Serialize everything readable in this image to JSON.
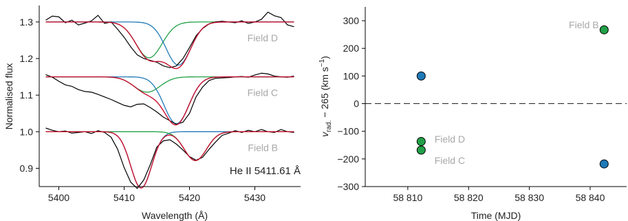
{
  "chart_data": [
    {
      "type": "line",
      "xlabel": "Wavelength (Å)",
      "ylabel": "Normalised flux",
      "xlim": [
        5397,
        5437
      ],
      "ylim": [
        0.85,
        1.345
      ],
      "xticks": [
        5400,
        5410,
        5420,
        5430
      ],
      "yticks": [
        0.9,
        1.0,
        1.1,
        1.2,
        1.3
      ],
      "ytick_labels": [
        "0.9",
        "1.0",
        "1.1",
        "1.2",
        "1.3"
      ],
      "annotation": "He II 5411.61 Å",
      "colors": {
        "data": "#000000",
        "fit": "#c8102e",
        "blue": "#1f7ab8",
        "green": "#22a047"
      },
      "panels": [
        {
          "label": "Field D",
          "continuum": 1.3,
          "components": [
            {
              "color": "green",
              "center": 5413.8,
              "depth": 0.098,
              "sigma": 2.0
            },
            {
              "color": "blue",
              "center": 5418.3,
              "depth": 0.118,
              "sigma": 1.9
            }
          ],
          "observed": {
            "x": [
              5398,
              5399,
              5400,
              5401,
              5402,
              5403,
              5404,
              5405,
              5406,
              5407,
              5408,
              5409,
              5410,
              5411,
              5412,
              5413,
              5414,
              5415,
              5416,
              5417,
              5418,
              5419,
              5420,
              5421,
              5422,
              5423,
              5424,
              5425,
              5426,
              5427,
              5428,
              5429,
              5430,
              5431,
              5432,
              5433,
              5434,
              5435,
              5436
            ],
            "y": [
              1.305,
              1.316,
              1.314,
              1.298,
              1.305,
              1.292,
              1.297,
              1.303,
              1.318,
              1.296,
              1.3,
              1.28,
              1.258,
              1.232,
              1.21,
              1.2,
              1.195,
              1.19,
              1.18,
              1.175,
              1.18,
              1.2,
              1.23,
              1.262,
              1.282,
              1.295,
              1.3,
              1.302,
              1.3,
              1.298,
              1.303,
              1.296,
              1.3,
              1.307,
              1.327,
              1.317,
              1.312,
              1.292,
              1.287
            ]
          }
        },
        {
          "label": "Field C",
          "continuum": 1.15,
          "components": [
            {
              "color": "green",
              "center": 5413.5,
              "depth": 0.042,
              "sigma": 2.0
            },
            {
              "color": "blue",
              "center": 5418.0,
              "depth": 0.128,
              "sigma": 1.9
            }
          ],
          "observed": {
            "x": [
              5398,
              5399,
              5400,
              5401,
              5402,
              5403,
              5404,
              5405,
              5406,
              5407,
              5408,
              5409,
              5410,
              5411,
              5412,
              5413,
              5414,
              5415,
              5416,
              5417,
              5418,
              5419,
              5420,
              5421,
              5422,
              5423,
              5424,
              5425,
              5426,
              5427,
              5428,
              5429,
              5430,
              5431,
              5432,
              5433,
              5434,
              5435,
              5436
            ],
            "y": [
              1.156,
              1.149,
              1.138,
              1.128,
              1.124,
              1.115,
              1.11,
              1.108,
              1.102,
              1.095,
              1.088,
              1.08,
              1.072,
              1.068,
              1.075,
              1.076,
              1.066,
              1.054,
              1.04,
              1.03,
              1.02,
              1.026,
              1.05,
              1.095,
              1.122,
              1.14,
              1.146,
              1.147,
              1.148,
              1.15,
              1.151,
              1.149,
              1.155,
              1.16,
              1.158,
              1.152,
              1.15,
              1.149,
              1.152
            ]
          }
        },
        {
          "label": "Field B",
          "continuum": 1.0,
          "components": [
            {
              "color": "blue",
              "center": 5412.6,
              "depth": 0.154,
              "sigma": 1.6
            },
            {
              "color": "green",
              "center": 5420.9,
              "depth": 0.079,
              "sigma": 1.7
            }
          ],
          "observed": {
            "x": [
              5398,
              5399,
              5400,
              5401,
              5402,
              5403,
              5404,
              5405,
              5406,
              5407,
              5408,
              5409,
              5410,
              5411,
              5412,
              5413,
              5414,
              5415,
              5416,
              5417,
              5418,
              5419,
              5420,
              5421,
              5422,
              5423,
              5424,
              5425,
              5426,
              5427,
              5428,
              5429,
              5430,
              5431,
              5432,
              5433,
              5434,
              5435,
              5436
            ],
            "y": [
              1.01,
              1.004,
              1.0,
              1.002,
              0.996,
              0.998,
              1.0,
              0.995,
              1.003,
              0.998,
              0.985,
              0.952,
              0.902,
              0.862,
              0.845,
              0.868,
              0.91,
              0.958,
              0.975,
              0.978,
              0.966,
              0.95,
              0.932,
              0.922,
              0.93,
              0.952,
              0.972,
              0.99,
              0.996,
              1.003,
              0.998,
              1.004,
              1.0,
              1.006,
              1.0,
              0.998,
              1.006,
              1.0,
              0.998
            ]
          }
        }
      ]
    },
    {
      "type": "scatter",
      "xlabel": "Time (MJD)",
      "ylabel_symbol": "v",
      "ylabel_subscript": "rad.",
      "ylabel_text": " − 265 (km s",
      "ylabel_superscript": "−1",
      "ylabel_close": ")",
      "xlim": [
        58803,
        58846
      ],
      "ylim": [
        -300,
        350
      ],
      "xticks": [
        58810,
        58820,
        58830,
        58840
      ],
      "xtick_labels": [
        "58 810",
        "58 820",
        "58 830",
        "58 840"
      ],
      "yticks": [
        -300,
        -200,
        -100,
        0,
        100,
        200,
        300
      ],
      "ytick_labels": [
        "−300",
        "−200",
        "−100",
        "0",
        "100",
        "200",
        "300"
      ],
      "reference_line": 0,
      "points": [
        {
          "x": 58812.2,
          "y": 100,
          "color": "#1f7ab8"
        },
        {
          "x": 58812.2,
          "y": -137,
          "color": "#22a047"
        },
        {
          "x": 58812.2,
          "y": -168,
          "color": "#22a047"
        },
        {
          "x": 58842.3,
          "y": 267,
          "color": "#22a047"
        },
        {
          "x": 58842.3,
          "y": -218,
          "color": "#1f7ab8"
        }
      ],
      "labels": [
        {
          "text": "Field B",
          "x": 58836.5,
          "y": 285
        },
        {
          "text": "Field D",
          "x": 58814.4,
          "y": -128
        },
        {
          "text": "Field C",
          "x": 58814.4,
          "y": -205
        }
      ]
    }
  ]
}
